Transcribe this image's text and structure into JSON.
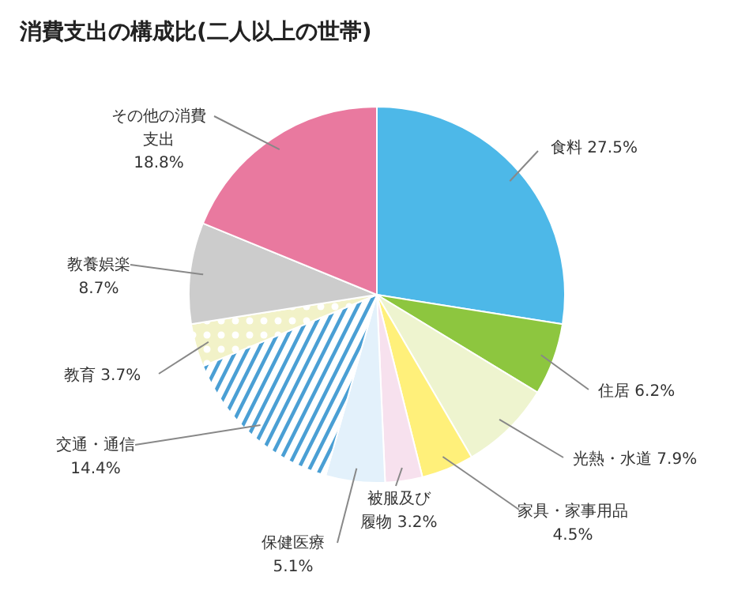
{
  "chart_data": {
    "type": "pie",
    "title": "消費支出の構成比(二人以上の世帯)",
    "categories": [
      "食料",
      "住居",
      "光熱・水道",
      "家具・家事用品",
      "被服及び履物",
      "保健医療",
      "交通・通信",
      "教育",
      "教養娯楽",
      "その他の消費支出"
    ],
    "values": [
      27.5,
      6.2,
      7.9,
      4.5,
      3.2,
      5.1,
      14.4,
      3.7,
      8.7,
      18.8
    ],
    "colors": [
      "#4db8e8",
      "#8dc63f",
      "#eef4cf",
      "#fff07a",
      "#f7e1ee",
      "#e3f1fb",
      "#4a9fd4",
      "#f2f2c8",
      "#cccccc",
      "#e9799f"
    ],
    "value_labels": [
      "27.5%",
      "6.2%",
      "7.9%",
      "4.5%",
      "3.2%",
      "5.1%",
      "14.4%",
      "3.7%",
      "8.7%",
      "18.8%"
    ]
  }
}
